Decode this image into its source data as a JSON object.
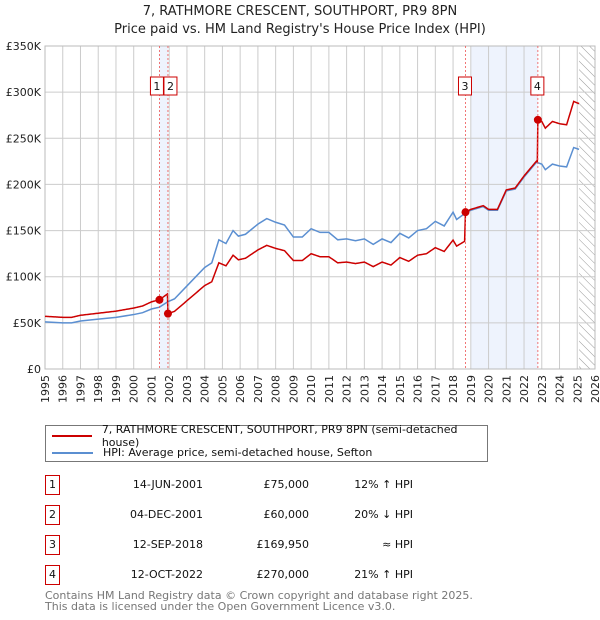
{
  "title": "7, RATHMORE CRESCENT, SOUTHPORT, PR9 8PN",
  "subtitle": "Price paid vs. HM Land Registry's House Price Index (HPI)",
  "colors": {
    "property": "#cc0000",
    "hpi": "#5b8fd1",
    "band": "#eef3fd",
    "grid": "#cccccc"
  },
  "chart_data": {
    "type": "line",
    "xlim": [
      1995,
      2026
    ],
    "ylim": [
      0,
      350000
    ],
    "y_ticks": [
      {
        "v": 0,
        "label": "£0"
      },
      {
        "v": 50000,
        "label": "£50K"
      },
      {
        "v": 100000,
        "label": "£100K"
      },
      {
        "v": 150000,
        "label": "£150K"
      },
      {
        "v": 200000,
        "label": "£200K"
      },
      {
        "v": 250000,
        "label": "£250K"
      },
      {
        "v": 300000,
        "label": "£300K"
      },
      {
        "v": 350000,
        "label": "£350K"
      }
    ],
    "x_ticks": [
      "1995",
      "1996",
      "1997",
      "1998",
      "1999",
      "2000",
      "2001",
      "2002",
      "2003",
      "2004",
      "2005",
      "2006",
      "2007",
      "2008",
      "2009",
      "2010",
      "2011",
      "2012",
      "2013",
      "2014",
      "2015",
      "2016",
      "2017",
      "2018",
      "2019",
      "2020",
      "2021",
      "2022",
      "2023",
      "2024",
      "2025",
      "2026"
    ],
    "hpi_series": {
      "name": "HPI: Average price, semi-detached house, Sefton",
      "points": [
        [
          1995,
          51
        ],
        [
          1996,
          50
        ],
        [
          1996.5,
          50
        ],
        [
          1997,
          52
        ],
        [
          1998,
          54
        ],
        [
          1999,
          56
        ],
        [
          2000,
          59
        ],
        [
          2000.5,
          61
        ],
        [
          2001,
          65
        ],
        [
          2001.45,
          67
        ],
        [
          2001.93,
          73
        ],
        [
          2002.3,
          76
        ],
        [
          2003,
          90
        ],
        [
          2004,
          110
        ],
        [
          2004.4,
          115
        ],
        [
          2004.8,
          140
        ],
        [
          2005.2,
          136
        ],
        [
          2005.6,
          150
        ],
        [
          2005.9,
          144
        ],
        [
          2006.3,
          146
        ],
        [
          2007,
          157
        ],
        [
          2007.5,
          163
        ],
        [
          2008,
          159
        ],
        [
          2008.5,
          156
        ],
        [
          2009,
          143
        ],
        [
          2009.5,
          143
        ],
        [
          2010,
          152
        ],
        [
          2010.5,
          148
        ],
        [
          2011,
          148
        ],
        [
          2011.5,
          140
        ],
        [
          2012,
          141
        ],
        [
          2012.5,
          139
        ],
        [
          2013,
          141
        ],
        [
          2013.5,
          135
        ],
        [
          2014,
          141
        ],
        [
          2014.5,
          137
        ],
        [
          2015,
          147
        ],
        [
          2015.5,
          142
        ],
        [
          2016,
          150
        ],
        [
          2016.5,
          152
        ],
        [
          2017,
          160
        ],
        [
          2017.5,
          155
        ],
        [
          2018,
          170
        ],
        [
          2018.2,
          162
        ],
        [
          2018.7,
          169
        ],
        [
          2019,
          172
        ],
        [
          2019.7,
          176
        ],
        [
          2020,
          172
        ],
        [
          2020.5,
          172
        ],
        [
          2021,
          193
        ],
        [
          2021.5,
          195
        ],
        [
          2022,
          208
        ],
        [
          2022.7,
          224
        ],
        [
          2023,
          222
        ],
        [
          2023.2,
          216
        ],
        [
          2023.6,
          222
        ],
        [
          2024,
          220
        ],
        [
          2024.4,
          219
        ],
        [
          2024.8,
          240
        ],
        [
          2025.1,
          238
        ]
      ]
    },
    "property_series": {
      "name": "7, RATHMORE CRESCENT, SOUTHPORT, PR9 8PN (semi-detached house)"
    },
    "sales": [
      {
        "n": "1",
        "t": 2001.45,
        "date": "14-JUN-2001",
        "price": 75000,
        "price_label": "£75,000",
        "hpi": "12% ↑ HPI"
      },
      {
        "n": "2",
        "t": 2001.93,
        "date": "04-DEC-2001",
        "price": 60000,
        "price_label": "£60,000",
        "hpi": "20% ↓ HPI"
      },
      {
        "n": "3",
        "t": 2018.7,
        "date": "12-SEP-2018",
        "price": 169950,
        "price_label": "£169,950",
        "hpi": "≈ HPI"
      },
      {
        "n": "4",
        "t": 2022.78,
        "date": "12-OCT-2022",
        "price": 270000,
        "price_label": "£270,000",
        "hpi": "21% ↑ HPI"
      }
    ],
    "shaded_ranges": [
      [
        2001.45,
        2001.93
      ],
      [
        2019.0,
        2022.78
      ]
    ],
    "forecast_hatch_from": 2025.1
  },
  "footer": [
    "Contains HM Land Registry data © Crown copyright and database right 2025.",
    "This data is licensed under the Open Government Licence v3.0."
  ]
}
